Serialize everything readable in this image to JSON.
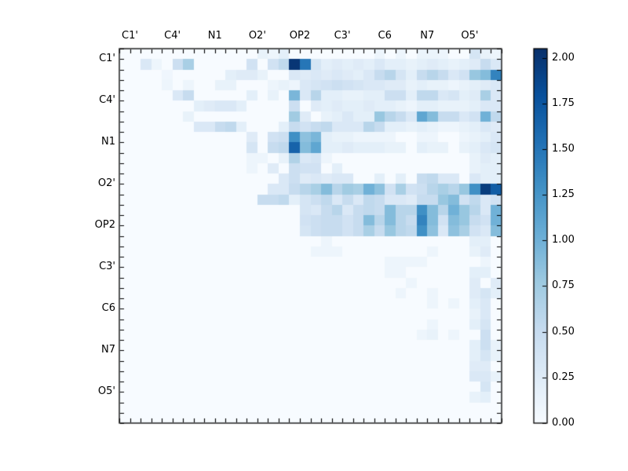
{
  "figure": {
    "background": "#ffffff"
  },
  "chart_data": {
    "type": "heatmap",
    "title": "",
    "grid_size": 36,
    "x_tick_labels": [
      "C1'",
      "C4'",
      "N1",
      "O2'",
      "OP2",
      "C3'",
      "C6",
      "N7",
      "O5'"
    ],
    "y_tick_labels": [
      "C1'",
      "C4'",
      "N1",
      "O2'",
      "OP2",
      "C3'",
      "C6",
      "N7",
      "O5'"
    ],
    "tick_positions": [
      1,
      5,
      9,
      13,
      17,
      21,
      25,
      29,
      33
    ],
    "vmin": 0,
    "vmax": 2.05,
    "colormap": "Blues",
    "colormap_stops": [
      "#f7fbff",
      "#deebf7",
      "#c6dbef",
      "#9ecae1",
      "#6baed6",
      "#4292c6",
      "#2171b5",
      "#08519c",
      "#08306b"
    ],
    "colorbar": {
      "tick_values": [
        0,
        0.25,
        0.5,
        0.75,
        1.0,
        1.25,
        1.5,
        1.75,
        2.0
      ],
      "tick_labels": [
        "0.00",
        "0.25",
        "0.50",
        "0.75",
        "1.00",
        "1.25",
        "1.50",
        "1.75",
        "2.00"
      ]
    },
    "matrix": [
      [
        0,
        0,
        0,
        0,
        0,
        0,
        0,
        0,
        0,
        0,
        0,
        0,
        0,
        0.15,
        0.1,
        0.2,
        0,
        0,
        0,
        0,
        0,
        0,
        0,
        0,
        0.1,
        0,
        0.1,
        0,
        0.12,
        0.12,
        0.1,
        0,
        0,
        0.35,
        0.15,
        0.1
      ],
      [
        0,
        0,
        0.3,
        0.1,
        0,
        0.45,
        0.7,
        0,
        0,
        0,
        0,
        0,
        0.4,
        0,
        0.4,
        0.55,
        2,
        1.5,
        0.35,
        0.2,
        0.25,
        0.2,
        0.25,
        0.2,
        0.3,
        0.2,
        0.2,
        0.15,
        0.2,
        0.25,
        0.2,
        0.15,
        0.2,
        0.25,
        0.5,
        0.3
      ],
      [
        0,
        0,
        0,
        0,
        0.08,
        0,
        0,
        0,
        0,
        0,
        0.2,
        0.25,
        0.25,
        0.15,
        0,
        0,
        0.3,
        0.25,
        0.3,
        0.25,
        0.3,
        0.25,
        0.2,
        0.3,
        0.5,
        0.6,
        0.35,
        0.2,
        0.5,
        0.6,
        0.5,
        0.3,
        0.4,
        0.8,
        0.9,
        1.4
      ],
      [
        0,
        0,
        0,
        0,
        0.1,
        0,
        0.1,
        0,
        0,
        0.15,
        0.15,
        0,
        0,
        0,
        0.1,
        0.15,
        0.1,
        0.3,
        0.35,
        0.4,
        0.45,
        0.4,
        0.35,
        0.3,
        0.3,
        0.25,
        0.25,
        0.15,
        0.2,
        0.15,
        0.15,
        0.1,
        0.15,
        0.2,
        0.25,
        0.3
      ],
      [
        0,
        0,
        0,
        0,
        0,
        0.3,
        0.5,
        0,
        0,
        0,
        0,
        0,
        0.2,
        0,
        0.15,
        0,
        0.95,
        0.3,
        0.6,
        0.2,
        0.2,
        0.15,
        0.15,
        0.2,
        0.2,
        0.45,
        0.45,
        0.2,
        0.55,
        0.55,
        0.3,
        0.35,
        0.2,
        0.25,
        0.7,
        0.3
      ],
      [
        0,
        0,
        0,
        0,
        0,
        0,
        0,
        0.2,
        0.25,
        0.3,
        0.3,
        0.2,
        0,
        0,
        0,
        0,
        0.45,
        0,
        0.25,
        0.2,
        0.25,
        0.2,
        0.2,
        0.25,
        0.2,
        0.2,
        0.15,
        0.1,
        0.2,
        0.2,
        0.15,
        0.15,
        0.15,
        0.2,
        0.3,
        0.3
      ],
      [
        0,
        0,
        0,
        0,
        0,
        0,
        0.15,
        0,
        0,
        0,
        0,
        0,
        0,
        0,
        0,
        0,
        0.75,
        0.25,
        0,
        0.15,
        0.2,
        0.3,
        0.2,
        0.2,
        0.8,
        0.6,
        0.5,
        0.3,
        1.1,
        0.9,
        0.5,
        0.5,
        0.3,
        0.4,
        1,
        0.55
      ],
      [
        0,
        0,
        0,
        0,
        0,
        0,
        0,
        0.3,
        0.3,
        0.5,
        0.55,
        0.2,
        0,
        0,
        0,
        0.2,
        0.5,
        0.4,
        0.5,
        0.55,
        0.3,
        0.3,
        0.3,
        0.6,
        0.5,
        0.2,
        0.2,
        0.15,
        0.2,
        0.15,
        0.1,
        0.1,
        0.15,
        0.2,
        0.3,
        0.25
      ],
      [
        0,
        0,
        0,
        0,
        0,
        0,
        0,
        0,
        0,
        0,
        0,
        0,
        0.25,
        0,
        0.4,
        0.45,
        1.3,
        0.85,
        0.95,
        0.2,
        0.15,
        0.15,
        0.1,
        0.1,
        0.1,
        0.1,
        0,
        0,
        0.1,
        0.1,
        0,
        0,
        0.1,
        0.15,
        0.2,
        0.3
      ],
      [
        0,
        0,
        0,
        0,
        0,
        0,
        0,
        0,
        0,
        0,
        0,
        0,
        0.35,
        0,
        0.5,
        0.55,
        1.65,
        0.9,
        1.1,
        0.2,
        0.2,
        0.25,
        0.2,
        0.2,
        0.2,
        0.15,
        0.15,
        0,
        0.2,
        0.15,
        0.15,
        0,
        0.15,
        0.2,
        0.3,
        0.35
      ],
      [
        0,
        0,
        0,
        0,
        0,
        0,
        0,
        0,
        0,
        0,
        0,
        0,
        0.1,
        0.1,
        0,
        0.15,
        0.65,
        0.3,
        0.35,
        0.1,
        0,
        0,
        0,
        0,
        0,
        0,
        0,
        0,
        0,
        0,
        0,
        0,
        0,
        0.15,
        0.25,
        0.2
      ],
      [
        0,
        0,
        0,
        0,
        0,
        0,
        0,
        0,
        0,
        0,
        0,
        0,
        0.1,
        0,
        0.25,
        0,
        0.45,
        0.4,
        0.4,
        0,
        0.2,
        0,
        0,
        0,
        0,
        0,
        0,
        0,
        0,
        0,
        0,
        0,
        0,
        0.15,
        0.2,
        0.2
      ],
      [
        0,
        0,
        0,
        0,
        0,
        0,
        0,
        0,
        0,
        0,
        0,
        0,
        0,
        0,
        0,
        0.3,
        0.45,
        0.25,
        0.3,
        0.25,
        0.3,
        0.3,
        0,
        0,
        0.2,
        0,
        0.2,
        0,
        0.5,
        0.55,
        0.3,
        0.3,
        0,
        0.3,
        0.2,
        0.2
      ],
      [
        0,
        0,
        0,
        0,
        0,
        0,
        0,
        0,
        0,
        0,
        0,
        0,
        0,
        0,
        0.3,
        0.3,
        0.5,
        0.6,
        0.7,
        0.9,
        0.6,
        0.75,
        0.7,
        1,
        0.85,
        0.4,
        0.7,
        0.4,
        0.45,
        0.6,
        0.7,
        0.6,
        0.8,
        1.3,
        1.95,
        1.7
      ],
      [
        0,
        0,
        0,
        0,
        0,
        0,
        0,
        0,
        0,
        0,
        0,
        0,
        0,
        0.5,
        0.5,
        0.55,
        0.2,
        0.35,
        0.45,
        0.55,
        0.3,
        0.5,
        0.3,
        0.55,
        0.5,
        0.3,
        0.3,
        0.25,
        0.5,
        0.5,
        0.8,
        0.9,
        0.4,
        0.55,
        0.3,
        0.4
      ],
      [
        0,
        0,
        0,
        0,
        0,
        0,
        0,
        0,
        0,
        0,
        0,
        0,
        0,
        0,
        0,
        0,
        0,
        0.35,
        0.3,
        0.5,
        0.6,
        0.3,
        0.5,
        0.55,
        0.5,
        0.9,
        0.6,
        0.6,
        1.3,
        0.9,
        0.6,
        1,
        0.8,
        0.6,
        0.3,
        1
      ],
      [
        0,
        0,
        0,
        0,
        0,
        0,
        0,
        0,
        0,
        0,
        0,
        0,
        0,
        0,
        0,
        0,
        0,
        0.4,
        0.45,
        0.5,
        0.5,
        0.4,
        0.5,
        0.9,
        0.6,
        0.9,
        0.6,
        0.5,
        1.4,
        0.9,
        0.4,
        0.9,
        0.8,
        0.5,
        0.4,
        1
      ],
      [
        0,
        0,
        0,
        0,
        0,
        0,
        0,
        0,
        0,
        0,
        0,
        0,
        0,
        0,
        0,
        0,
        0,
        0.35,
        0.45,
        0.5,
        0.5,
        0.4,
        0.5,
        0.7,
        0.5,
        0.8,
        0.6,
        0.55,
        1.3,
        0.85,
        0.3,
        0.85,
        0.7,
        0.4,
        0.3,
        0.9
      ],
      [
        0,
        0,
        0,
        0,
        0,
        0,
        0,
        0,
        0,
        0,
        0,
        0,
        0,
        0,
        0,
        0,
        0,
        0,
        0,
        0.1,
        0,
        0,
        0,
        0,
        0,
        0,
        0,
        0,
        0,
        0,
        0,
        0,
        0,
        0.2,
        0.2,
        0
      ],
      [
        0,
        0,
        0,
        0,
        0,
        0,
        0,
        0,
        0,
        0,
        0,
        0,
        0,
        0,
        0,
        0,
        0,
        0,
        0.1,
        0.1,
        0.1,
        0,
        0,
        0,
        0,
        0,
        0,
        0,
        0,
        0.1,
        0,
        0,
        0,
        0.15,
        0.25,
        0
      ],
      [
        0,
        0,
        0,
        0,
        0,
        0,
        0,
        0,
        0,
        0,
        0,
        0,
        0,
        0,
        0,
        0,
        0,
        0,
        0,
        0,
        0,
        0,
        0,
        0,
        0,
        0.1,
        0.1,
        0.1,
        0.1,
        0,
        0,
        0,
        0,
        0,
        0.1,
        0
      ],
      [
        0,
        0,
        0,
        0,
        0,
        0,
        0,
        0,
        0,
        0,
        0,
        0,
        0,
        0,
        0,
        0,
        0,
        0,
        0,
        0,
        0,
        0,
        0,
        0,
        0,
        0.1,
        0.1,
        0,
        0,
        0,
        0,
        0,
        0,
        0.2,
        0.2,
        0
      ],
      [
        0,
        0,
        0,
        0,
        0,
        0,
        0,
        0,
        0,
        0,
        0,
        0,
        0,
        0,
        0,
        0,
        0,
        0,
        0,
        0,
        0,
        0,
        0,
        0,
        0,
        0,
        0,
        0.1,
        0,
        0,
        0,
        0,
        0,
        0.25,
        0,
        0.25
      ],
      [
        0,
        0,
        0,
        0,
        0,
        0,
        0,
        0,
        0,
        0,
        0,
        0,
        0,
        0,
        0,
        0,
        0,
        0,
        0,
        0,
        0,
        0,
        0,
        0,
        0,
        0,
        0.1,
        0,
        0,
        0.1,
        0,
        0,
        0,
        0.25,
        0.35,
        0.2
      ],
      [
        0,
        0,
        0,
        0,
        0,
        0,
        0,
        0,
        0,
        0,
        0,
        0,
        0,
        0,
        0,
        0,
        0,
        0,
        0,
        0,
        0,
        0,
        0,
        0,
        0,
        0,
        0,
        0,
        0,
        0.1,
        0,
        0.1,
        0,
        0.2,
        0.3,
        0
      ],
      [
        0,
        0,
        0,
        0,
        0,
        0,
        0,
        0,
        0,
        0,
        0,
        0,
        0,
        0,
        0,
        0,
        0,
        0,
        0,
        0,
        0,
        0,
        0,
        0,
        0,
        0,
        0,
        0,
        0,
        0,
        0,
        0,
        0,
        0.15,
        0.3,
        0
      ],
      [
        0,
        0,
        0,
        0,
        0,
        0,
        0,
        0,
        0,
        0,
        0,
        0,
        0,
        0,
        0,
        0,
        0,
        0,
        0,
        0,
        0,
        0,
        0,
        0,
        0,
        0,
        0,
        0,
        0,
        0.1,
        0,
        0,
        0,
        0.2,
        0.35,
        0
      ],
      [
        0,
        0,
        0,
        0,
        0,
        0,
        0,
        0,
        0,
        0,
        0,
        0,
        0,
        0,
        0,
        0,
        0,
        0,
        0,
        0,
        0,
        0,
        0,
        0,
        0,
        0,
        0,
        0,
        0.1,
        0.15,
        0,
        0.1,
        0,
        0,
        0.45,
        0
      ],
      [
        0,
        0,
        0,
        0,
        0,
        0,
        0,
        0,
        0,
        0,
        0,
        0,
        0,
        0,
        0,
        0,
        0,
        0,
        0,
        0,
        0,
        0,
        0,
        0,
        0,
        0,
        0,
        0,
        0,
        0,
        0,
        0,
        0,
        0.2,
        0.45,
        0.15
      ],
      [
        0,
        0,
        0,
        0,
        0,
        0,
        0,
        0,
        0,
        0,
        0,
        0,
        0,
        0,
        0,
        0,
        0,
        0,
        0,
        0,
        0,
        0,
        0,
        0,
        0,
        0,
        0,
        0,
        0,
        0,
        0,
        0,
        0,
        0.2,
        0.35,
        0.15
      ],
      [
        0,
        0,
        0,
        0,
        0,
        0,
        0,
        0,
        0,
        0,
        0,
        0,
        0,
        0,
        0,
        0,
        0,
        0,
        0,
        0,
        0,
        0,
        0,
        0,
        0,
        0,
        0,
        0,
        0,
        0,
        0,
        0,
        0,
        0.25,
        0.25,
        0
      ],
      [
        0,
        0,
        0,
        0,
        0,
        0,
        0,
        0,
        0,
        0,
        0,
        0,
        0,
        0,
        0,
        0,
        0,
        0,
        0,
        0,
        0,
        0,
        0,
        0,
        0,
        0,
        0,
        0,
        0,
        0,
        0,
        0,
        0,
        0.3,
        0.3,
        0.15
      ],
      [
        0,
        0,
        0,
        0,
        0,
        0,
        0,
        0,
        0,
        0,
        0,
        0,
        0,
        0,
        0,
        0,
        0,
        0,
        0,
        0,
        0,
        0,
        0,
        0,
        0,
        0,
        0,
        0,
        0,
        0,
        0,
        0,
        0,
        0,
        0.35,
        0
      ],
      [
        0,
        0,
        0,
        0,
        0,
        0,
        0,
        0,
        0,
        0,
        0,
        0,
        0,
        0,
        0,
        0,
        0,
        0,
        0,
        0,
        0,
        0,
        0,
        0,
        0,
        0,
        0,
        0,
        0,
        0,
        0,
        0,
        0,
        0.15,
        0.2,
        0
      ],
      [
        0,
        0,
        0,
        0,
        0,
        0,
        0,
        0,
        0,
        0,
        0,
        0,
        0,
        0,
        0,
        0,
        0,
        0,
        0,
        0,
        0,
        0,
        0,
        0,
        0,
        0,
        0,
        0,
        0,
        0,
        0,
        0,
        0,
        0,
        0,
        0
      ],
      [
        0,
        0,
        0,
        0,
        0,
        0,
        0,
        0,
        0,
        0,
        0,
        0,
        0,
        0,
        0,
        0,
        0,
        0,
        0,
        0,
        0,
        0,
        0,
        0,
        0,
        0,
        0,
        0,
        0,
        0,
        0,
        0,
        0,
        0,
        0,
        0
      ]
    ]
  }
}
